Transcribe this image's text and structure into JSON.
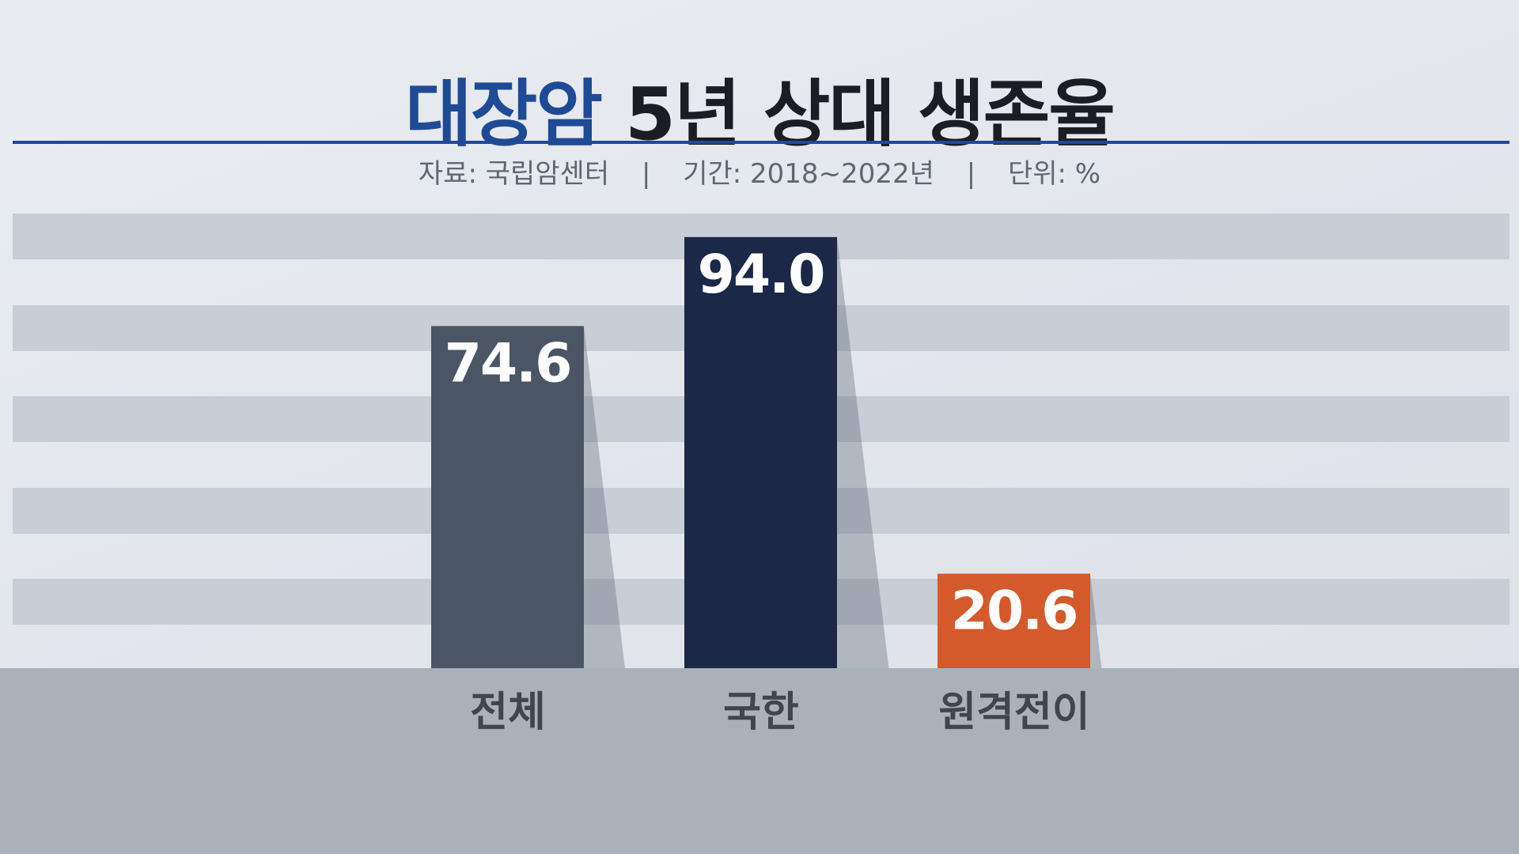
{
  "header": {
    "title_accent": "대장암",
    "title_rest": "5년 상대 생존율",
    "source": "자료: 국립암센터",
    "sep1": "|",
    "period": "기간: 2018~2022년",
    "sep2": "|",
    "unit": "단위: %"
  },
  "chart_data": {
    "type": "bar",
    "title": "대장암 5년 상대 생존율",
    "categories": [
      "전체",
      "국한",
      "원격전이"
    ],
    "values": [
      74.6,
      94.0,
      20.6
    ],
    "value_labels": [
      "74.6",
      "94.0",
      "20.6"
    ],
    "colors": [
      "#4a5565",
      "#1b2848",
      "#d45a2c"
    ],
    "ylim": [
      0,
      100
    ],
    "grid": "horizontal bands",
    "xlabel": "",
    "ylabel": ""
  }
}
